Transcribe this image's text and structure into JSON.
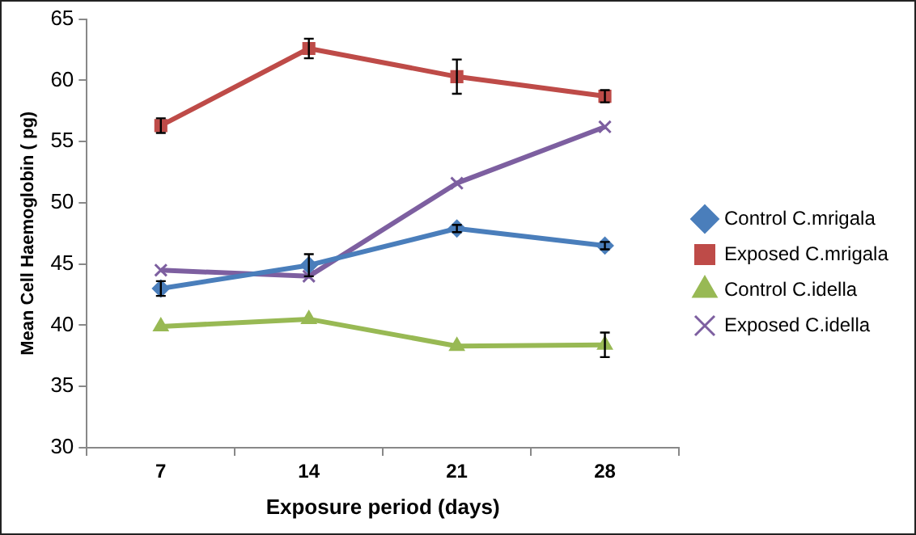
{
  "chart_data": {
    "type": "line",
    "xlabel": "Exposure period (days)",
    "ylabel": "Mean Cell Haemoglobin ( pg)",
    "categories": [
      "7",
      "14",
      "21",
      "28"
    ],
    "ylim": [
      30,
      65
    ],
    "yticks": [
      30,
      35,
      40,
      45,
      50,
      55,
      60,
      65
    ],
    "grid": false,
    "legend": "right",
    "series": [
      {
        "name": "Control C.mrigala",
        "color": "#4a7ebb",
        "marker": "diamond",
        "values": [
          43.0,
          44.9,
          47.9,
          46.5
        ],
        "errors": [
          0.6,
          0.9,
          0.3,
          0.3
        ]
      },
      {
        "name": "Exposed C.mrigala",
        "color": "#be4b48",
        "marker": "square",
        "values": [
          56.3,
          62.6,
          60.3,
          58.7
        ],
        "errors": [
          0.6,
          0.8,
          1.4,
          0.5
        ]
      },
      {
        "name": "Control C.idella",
        "color": "#98b954",
        "marker": "triangle",
        "values": [
          39.9,
          40.5,
          38.3,
          38.4
        ],
        "errors": [
          null,
          null,
          null,
          1.0
        ]
      },
      {
        "name": "Exposed C.idella",
        "color": "#7d5fa0",
        "marker": "cross",
        "values": [
          44.5,
          44.0,
          51.6,
          56.2
        ]
      }
    ]
  }
}
